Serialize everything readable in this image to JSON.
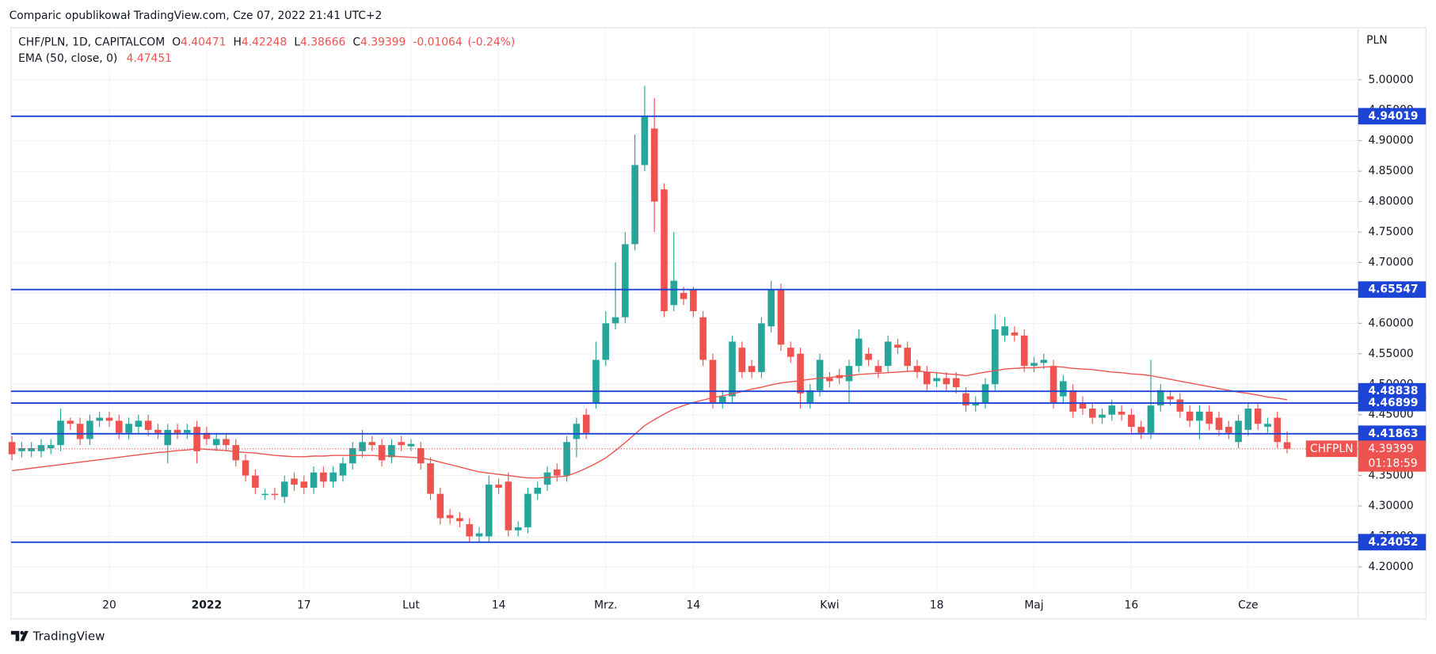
{
  "header": {
    "source": "Comparic opublikował TradingView.com, Cze 07, 2022 21:41 UTC+2",
    "brand": "TradingView"
  },
  "chart_data": {
    "type": "candlestick",
    "currency": "PLN",
    "series": [
      {
        "name": "CHF/PLN, 1D, CAPITALCOM",
        "up_color": "#26a69a",
        "down_color": "#ef5350",
        "open": [
          4.405,
          4.39,
          4.39,
          4.39,
          4.395,
          4.4,
          4.44,
          4.435,
          4.41,
          4.44,
          4.445,
          4.44,
          4.42,
          4.43,
          4.44,
          4.425,
          4.4,
          4.425,
          4.42,
          4.43,
          4.42,
          4.4,
          4.41,
          4.4,
          4.375,
          4.35,
          4.318,
          4.32,
          4.315,
          4.345,
          4.34,
          4.33,
          4.355,
          4.34,
          4.35,
          4.37,
          4.39,
          4.405,
          4.4,
          4.38,
          4.405,
          4.398,
          4.395,
          4.37,
          4.32,
          4.285,
          4.28,
          4.27,
          4.25,
          4.25,
          4.335,
          4.34,
          4.26,
          4.265,
          4.32,
          4.335,
          4.36,
          4.35,
          4.41,
          4.45,
          4.47,
          4.54,
          4.6,
          4.61,
          4.73,
          4.86,
          4.92,
          4.82,
          4.63,
          4.65,
          4.655,
          4.61,
          4.54,
          4.47,
          4.48,
          4.56,
          4.53,
          4.52,
          4.595,
          4.655,
          4.56,
          4.55,
          4.47,
          4.49,
          4.51,
          4.515,
          4.505,
          4.53,
          4.55,
          4.53,
          4.53,
          4.565,
          4.56,
          4.53,
          4.52,
          4.505,
          4.51,
          4.51,
          4.485,
          4.465,
          4.47,
          4.5,
          4.58,
          4.585,
          4.58,
          4.53,
          4.535,
          4.53,
          4.48,
          4.49,
          4.47,
          4.46,
          4.445,
          4.45,
          4.455,
          4.45,
          4.43,
          4.42,
          4.465,
          4.48,
          4.475,
          4.455,
          4.44,
          4.455,
          4.445,
          4.43,
          4.405,
          4.425,
          4.46,
          4.43,
          4.445,
          4.40471
        ],
        "high": [
          4.415,
          4.405,
          4.405,
          4.41,
          4.41,
          4.46,
          4.445,
          4.445,
          4.45,
          4.455,
          4.455,
          4.45,
          4.445,
          4.45,
          4.45,
          4.435,
          4.435,
          4.435,
          4.435,
          4.44,
          4.43,
          4.42,
          4.42,
          4.41,
          4.385,
          4.36,
          4.328,
          4.33,
          4.35,
          4.355,
          4.35,
          4.365,
          4.365,
          4.365,
          4.38,
          4.405,
          4.425,
          4.415,
          4.41,
          4.41,
          4.415,
          4.41,
          4.405,
          4.38,
          4.33,
          4.295,
          4.29,
          4.28,
          4.265,
          4.35,
          4.345,
          4.355,
          4.275,
          4.33,
          4.34,
          4.365,
          4.37,
          4.415,
          4.445,
          4.46,
          4.57,
          4.62,
          4.7,
          4.75,
          4.91,
          4.99,
          4.97,
          4.83,
          4.75,
          4.66,
          4.66,
          4.62,
          4.55,
          4.49,
          4.58,
          4.57,
          4.54,
          4.61,
          4.67,
          4.665,
          4.57,
          4.56,
          4.5,
          4.55,
          4.52,
          4.525,
          4.54,
          4.59,
          4.56,
          4.54,
          4.58,
          4.575,
          4.57,
          4.54,
          4.53,
          4.52,
          4.52,
          4.52,
          4.495,
          4.48,
          4.51,
          4.615,
          4.61,
          4.595,
          4.59,
          4.545,
          4.55,
          4.54,
          4.515,
          4.5,
          4.48,
          4.47,
          4.46,
          4.475,
          4.465,
          4.46,
          4.44,
          4.54,
          4.5,
          4.49,
          4.485,
          4.465,
          4.465,
          4.465,
          4.455,
          4.44,
          4.45,
          4.47,
          4.47,
          4.445,
          4.455,
          4.42248
        ],
        "low": [
          4.375,
          4.38,
          4.38,
          4.38,
          4.385,
          4.39,
          4.425,
          4.4,
          4.4,
          4.43,
          4.43,
          4.41,
          4.41,
          4.42,
          4.415,
          4.41,
          4.37,
          4.41,
          4.41,
          4.37,
          4.4,
          4.39,
          4.39,
          4.365,
          4.34,
          4.32,
          4.31,
          4.31,
          4.305,
          4.325,
          4.32,
          4.32,
          4.33,
          4.33,
          4.34,
          4.36,
          4.38,
          4.39,
          4.365,
          4.37,
          4.39,
          4.39,
          4.36,
          4.31,
          4.27,
          4.27,
          4.265,
          4.24,
          4.24,
          4.24,
          4.32,
          4.25,
          4.25,
          4.255,
          4.31,
          4.325,
          4.34,
          4.34,
          4.38,
          4.41,
          4.46,
          4.53,
          4.59,
          4.6,
          4.72,
          4.85,
          4.75,
          4.61,
          4.62,
          4.63,
          4.61,
          4.53,
          4.46,
          4.46,
          4.47,
          4.51,
          4.51,
          4.51,
          4.585,
          4.555,
          4.535,
          4.46,
          4.46,
          4.48,
          4.495,
          4.5,
          4.47,
          4.52,
          4.53,
          4.51,
          4.52,
          4.55,
          4.52,
          4.51,
          4.49,
          4.495,
          4.49,
          4.485,
          4.455,
          4.455,
          4.46,
          4.49,
          4.57,
          4.57,
          4.52,
          4.52,
          4.525,
          4.46,
          4.47,
          4.445,
          4.45,
          4.435,
          4.435,
          4.44,
          4.44,
          4.42,
          4.41,
          4.41,
          4.455,
          4.465,
          4.445,
          4.43,
          4.41,
          4.425,
          4.415,
          4.41,
          4.395,
          4.415,
          4.425,
          4.42,
          4.395,
          4.38666
        ],
        "close": [
          4.385,
          4.395,
          4.395,
          4.4,
          4.4,
          4.44,
          4.435,
          4.41,
          4.44,
          4.445,
          4.44,
          4.42,
          4.435,
          4.44,
          4.425,
          4.42,
          4.425,
          4.42,
          4.425,
          4.39,
          4.41,
          4.41,
          4.4,
          4.375,
          4.35,
          4.33,
          4.32,
          4.318,
          4.34,
          4.335,
          4.33,
          4.355,
          4.34,
          4.355,
          4.37,
          4.395,
          4.405,
          4.4,
          4.375,
          4.4,
          4.4,
          4.402,
          4.37,
          4.32,
          4.28,
          4.28,
          4.275,
          4.25,
          4.255,
          4.335,
          4.33,
          4.26,
          4.265,
          4.32,
          4.33,
          4.355,
          4.35,
          4.405,
          4.435,
          4.42,
          4.54,
          4.6,
          4.61,
          4.73,
          4.86,
          4.94,
          4.8,
          4.62,
          4.67,
          4.64,
          4.62,
          4.54,
          4.47,
          4.48,
          4.57,
          4.52,
          4.52,
          4.6,
          4.655,
          4.565,
          4.545,
          4.485,
          4.49,
          4.54,
          4.505,
          4.51,
          4.53,
          4.575,
          4.54,
          4.52,
          4.57,
          4.56,
          4.53,
          4.52,
          4.5,
          4.51,
          4.5,
          4.495,
          4.465,
          4.47,
          4.5,
          4.59,
          4.595,
          4.58,
          4.53,
          4.535,
          4.54,
          4.47,
          4.505,
          4.455,
          4.46,
          4.445,
          4.45,
          4.465,
          4.45,
          4.43,
          4.42,
          4.465,
          4.49,
          4.475,
          4.455,
          4.44,
          4.455,
          4.435,
          4.425,
          4.42,
          4.44,
          4.46,
          4.435,
          4.435,
          4.405,
          4.39399
        ]
      }
    ],
    "ohlc_labels": [
      "O",
      "H",
      "L",
      "C"
    ],
    "change": -0.01064,
    "change_pct_label": "(-0.24%)",
    "ema": {
      "name": "EMA (50, close, 0)",
      "color": "#ef5350",
      "values": [
        4.358,
        4.36,
        4.362,
        4.364,
        4.366,
        4.368,
        4.37,
        4.372,
        4.374,
        4.376,
        4.378,
        4.38,
        4.382,
        4.384,
        4.386,
        4.388,
        4.389,
        4.391,
        4.392,
        4.394,
        4.393,
        4.392,
        4.391,
        4.389,
        4.388,
        4.387,
        4.385,
        4.383,
        4.382,
        4.381,
        4.381,
        4.382,
        4.382,
        4.383,
        4.383,
        4.383,
        4.383,
        4.383,
        4.382,
        4.382,
        4.381,
        4.38,
        4.379,
        4.376,
        4.372,
        4.368,
        4.364,
        4.36,
        4.356,
        4.354,
        4.352,
        4.35,
        4.348,
        4.346,
        4.346,
        4.347,
        4.348,
        4.349,
        4.355,
        4.362,
        4.37,
        4.379,
        4.391,
        4.404,
        4.418,
        4.432,
        4.442,
        4.451,
        4.459,
        4.465,
        4.47,
        4.474,
        4.478,
        4.481,
        4.484,
        4.488,
        4.492,
        4.495,
        4.499,
        4.502,
        4.504,
        4.506,
        4.508,
        4.51,
        4.511,
        4.513,
        4.514,
        4.516,
        4.517,
        4.518,
        4.519,
        4.52,
        4.521,
        4.522,
        4.52,
        4.519,
        4.517,
        4.516,
        4.514,
        4.517,
        4.52,
        4.522,
        4.525,
        4.526,
        4.527,
        4.527,
        4.528,
        4.529,
        4.528,
        4.526,
        4.525,
        4.524,
        4.522,
        4.52,
        4.519,
        4.517,
        4.516,
        4.514,
        4.511,
        4.508,
        4.505,
        4.502,
        4.499,
        4.496,
        4.493,
        4.49,
        4.487,
        4.485,
        4.482,
        4.479,
        4.477,
        4.47451
      ]
    },
    "levels": {
      "color": "#1c44d6",
      "values": [
        4.94019,
        4.65547,
        4.48838,
        4.46899,
        4.41863,
        4.24052
      ]
    },
    "last_price": {
      "symbol": "CHFPLN",
      "countdown": "01:18:59"
    },
    "ylim": [
      4.1579,
      5.0857
    ],
    "yticks": [
      {
        "value": 4.2,
        "label": "4.20000"
      },
      {
        "value": 4.25,
        "label": "4.25000"
      },
      {
        "value": 4.3,
        "label": "4.30000"
      },
      {
        "value": 4.35,
        "label": "4.35000"
      },
      {
        "value": 4.4,
        "label": "4.40000"
      },
      {
        "value": 4.45,
        "label": "4.45000"
      },
      {
        "value": 4.5,
        "label": "4.50000"
      },
      {
        "value": 4.55,
        "label": "4.55000"
      },
      {
        "value": 4.6,
        "label": "4.60000"
      },
      {
        "value": 4.65,
        "label": "4.65000"
      },
      {
        "value": 4.7,
        "label": "4.70000"
      },
      {
        "value": 4.75,
        "label": "4.75000"
      },
      {
        "value": 4.8,
        "label": "4.80000"
      },
      {
        "value": 4.85,
        "label": "4.85000"
      },
      {
        "value": 4.9,
        "label": "4.90000"
      },
      {
        "value": 4.95,
        "label": "4.95000"
      },
      {
        "value": 5,
        "label": "5.00000"
      }
    ],
    "xlim": [
      -0.1,
      138.3
    ],
    "xticks": [
      {
        "value": 10,
        "label": "20"
      },
      {
        "value": 20,
        "label": "2022"
      },
      {
        "value": 30,
        "label": "17"
      },
      {
        "value": 41,
        "label": "Lut"
      },
      {
        "value": 50,
        "label": "14"
      },
      {
        "value": 61,
        "label": "Mrz."
      },
      {
        "value": 70,
        "label": "14"
      },
      {
        "value": 84,
        "label": "Kwi"
      },
      {
        "value": 95,
        "label": "18"
      },
      {
        "value": 105,
        "label": "Maj"
      },
      {
        "value": 115,
        "label": "16"
      },
      {
        "value": 127,
        "label": "Cze"
      }
    ],
    "grid": true
  }
}
